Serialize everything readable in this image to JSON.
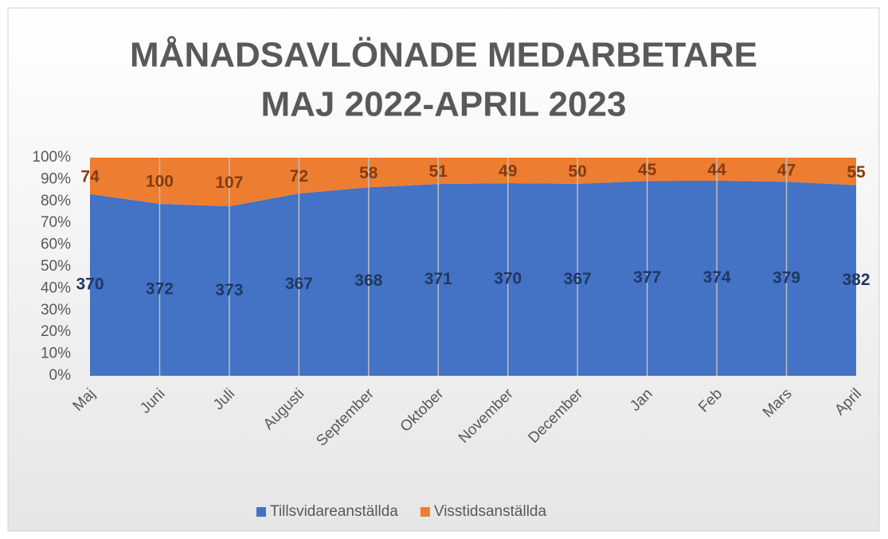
{
  "chart_data": {
    "type": "area",
    "stacked": "percent",
    "title": [
      "MÅNADSAVLÖNADE MEDARBETARE",
      "MAJ 2022-APRIL 2023"
    ],
    "categories": [
      "Maj",
      "Juni",
      "Juli",
      "Augusti",
      "September",
      "Oktober",
      "November",
      "December",
      "Jan",
      "Feb",
      "Mars",
      "April"
    ],
    "series": [
      {
        "name": "Tillsvidareanställda",
        "color": "#4472c4",
        "label_color": "#1f3864",
        "values": [
          370,
          372,
          373,
          367,
          368,
          371,
          370,
          367,
          377,
          374,
          379,
          382
        ]
      },
      {
        "name": "Visstidsanställda",
        "color": "#ed7d31",
        "label_color": "#843c0c",
        "values": [
          74,
          100,
          107,
          72,
          58,
          51,
          49,
          50,
          45,
          44,
          47,
          55
        ]
      }
    ],
    "ylim": [
      0,
      100
    ],
    "yticks": [
      {
        "value": 0,
        "label": "0%"
      },
      {
        "value": 10,
        "label": "10%"
      },
      {
        "value": 20,
        "label": "20%"
      },
      {
        "value": 30,
        "label": "30%"
      },
      {
        "value": 40,
        "label": "40%"
      },
      {
        "value": 50,
        "label": "50%"
      },
      {
        "value": 60,
        "label": "60%"
      },
      {
        "value": 70,
        "label": "70%"
      },
      {
        "value": 80,
        "label": "80%"
      },
      {
        "value": 90,
        "label": "90%"
      },
      {
        "value": 100,
        "label": "100%"
      }
    ],
    "grid": "vertical",
    "legend": "bottom"
  }
}
